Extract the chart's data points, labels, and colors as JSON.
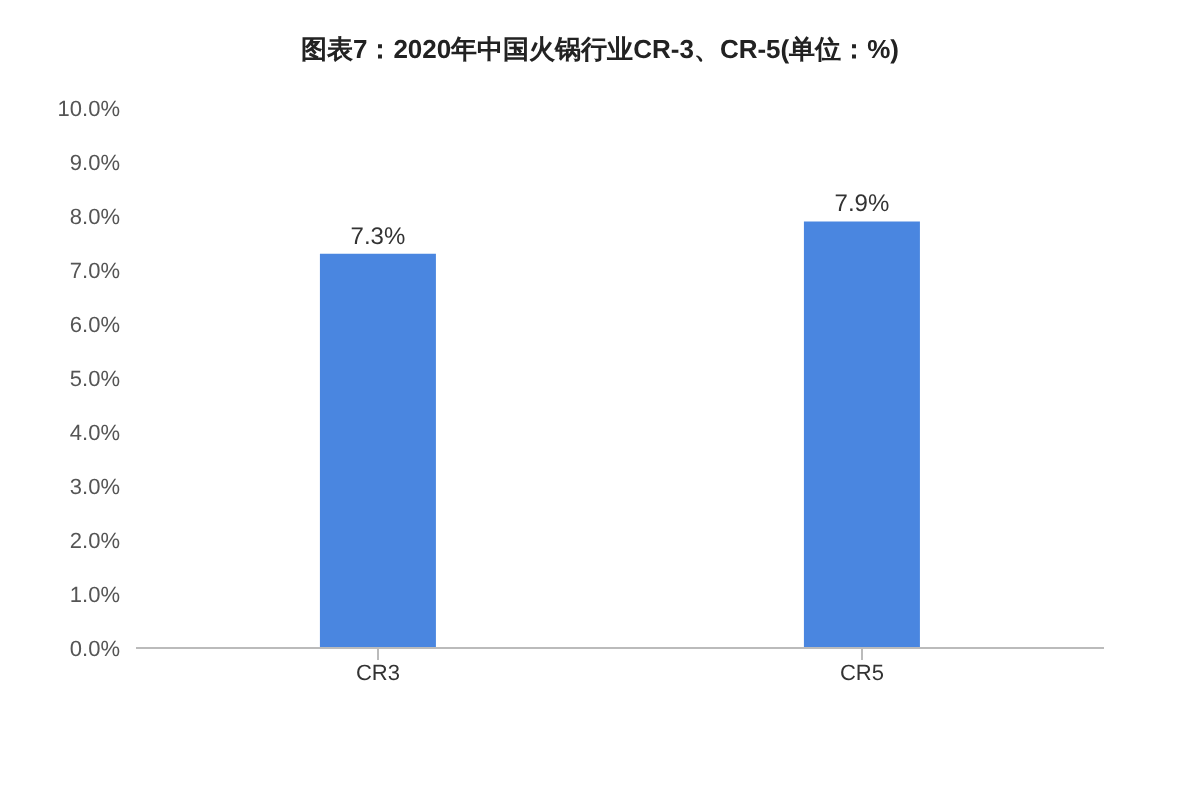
{
  "chart_data": {
    "type": "bar",
    "title": "图表7：2020年中国火锅行业CR-3、CR-5(单位：%)",
    "categories": [
      "CR3",
      "CR5"
    ],
    "values": [
      7.3,
      7.9
    ],
    "value_labels": [
      "7.3%",
      "7.9%"
    ],
    "color": "#4a86e0",
    "ylim": [
      0,
      10
    ],
    "yticks": [
      {
        "value": 0,
        "label": "0.0%"
      },
      {
        "value": 1,
        "label": "1.0%"
      },
      {
        "value": 2,
        "label": "2.0%"
      },
      {
        "value": 3,
        "label": "3.0%"
      },
      {
        "value": 4,
        "label": "4.0%"
      },
      {
        "value": 5,
        "label": "5.0%"
      },
      {
        "value": 6,
        "label": "6.0%"
      },
      {
        "value": 7,
        "label": "7.0%"
      },
      {
        "value": 8,
        "label": "8.0%"
      },
      {
        "value": 9,
        "label": "9.0%"
      },
      {
        "value": 10,
        "label": "10.0%"
      }
    ],
    "grid": false
  }
}
